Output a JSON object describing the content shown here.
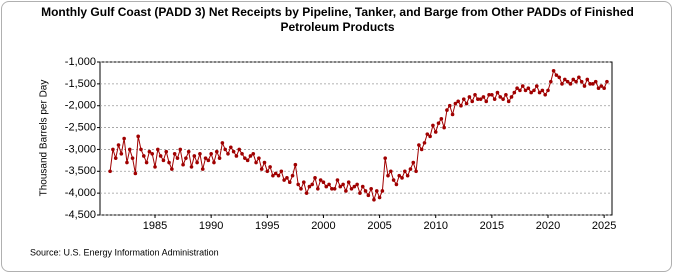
{
  "chart_data": {
    "type": "line",
    "title": "Monthly Gulf Coast (PADD 3) Net Receipts by Pipeline, Tanker, and Barge from Other PADDs of Finished Petroleum Products",
    "y_label": "Thousand Barrels per Day",
    "source": "Source: U.S. Energy Information Administration",
    "grid": true,
    "xlim": [
      1980.1,
      2025.7
    ],
    "xticks": [
      1985,
      1990,
      1995,
      2000,
      2005,
      2010,
      2015,
      2020,
      2025
    ],
    "ylim": [
      -4500,
      -1000
    ],
    "yticks": [
      {
        "value": -1000,
        "label": "-1,000"
      },
      {
        "value": -1500,
        "label": "-1,500"
      },
      {
        "value": -2000,
        "label": "-2,000"
      },
      {
        "value": -2500,
        "label": "-2,500"
      },
      {
        "value": -3000,
        "label": "-3,000"
      },
      {
        "value": -3500,
        "label": "-3,500"
      },
      {
        "value": -4000,
        "label": "-4,000"
      },
      {
        "value": -4500,
        "label": "-4,500"
      }
    ],
    "x": [
      1981,
      1981.25,
      1981.5,
      1981.75,
      1982,
      1982.25,
      1982.5,
      1982.75,
      1983,
      1983.25,
      1983.5,
      1983.75,
      1984,
      1984.25,
      1984.5,
      1984.75,
      1985,
      1985.25,
      1985.5,
      1985.75,
      1986,
      1986.25,
      1986.5,
      1986.75,
      1987,
      1987.25,
      1987.5,
      1987.75,
      1988,
      1988.25,
      1988.5,
      1988.75,
      1989,
      1989.25,
      1989.5,
      1989.75,
      1990,
      1990.25,
      1990.5,
      1990.75,
      1991,
      1991.25,
      1991.5,
      1991.75,
      1992,
      1992.25,
      1992.5,
      1992.75,
      1993,
      1993.25,
      1993.5,
      1993.75,
      1994,
      1994.25,
      1994.5,
      1994.75,
      1995,
      1995.25,
      1995.5,
      1995.75,
      1996,
      1996.25,
      1996.5,
      1996.75,
      1997,
      1997.25,
      1997.5,
      1997.75,
      1998,
      1998.25,
      1998.5,
      1998.75,
      1999,
      1999.25,
      1999.5,
      1999.75,
      2000,
      2000.25,
      2000.5,
      2000.75,
      2001,
      2001.25,
      2001.5,
      2001.75,
      2002,
      2002.25,
      2002.5,
      2002.75,
      2003,
      2003.25,
      2003.5,
      2003.75,
      2004,
      2004.25,
      2004.5,
      2004.75,
      2005,
      2005.25,
      2005.5,
      2005.75,
      2006,
      2006.25,
      2006.5,
      2006.75,
      2007,
      2007.25,
      2007.5,
      2007.75,
      2008,
      2008.25,
      2008.5,
      2008.75,
      2009,
      2009.25,
      2009.5,
      2009.75,
      2010,
      2010.25,
      2010.5,
      2010.75,
      2011,
      2011.25,
      2011.5,
      2011.75,
      2012,
      2012.25,
      2012.5,
      2012.75,
      2013,
      2013.25,
      2013.5,
      2013.75,
      2014,
      2014.25,
      2014.5,
      2014.75,
      2015,
      2015.25,
      2015.5,
      2015.75,
      2016,
      2016.25,
      2016.5,
      2016.75,
      2017,
      2017.25,
      2017.5,
      2017.75,
      2018,
      2018.25,
      2018.5,
      2018.75,
      2019,
      2019.25,
      2019.5,
      2019.75,
      2020,
      2020.25,
      2020.5,
      2020.75,
      2021,
      2021.25,
      2021.5,
      2021.75,
      2022,
      2022.25,
      2022.5,
      2022.75,
      2023,
      2023.25,
      2023.5,
      2023.75,
      2024,
      2024.25,
      2024.5,
      2024.75,
      2025,
      2025.25
    ],
    "series": [
      {
        "color": "#a00000",
        "values": [
          -3500,
          -3000,
          -3200,
          -2900,
          -3100,
          -2750,
          -3300,
          -3000,
          -3200,
          -3550,
          -2700,
          -3000,
          -3150,
          -3300,
          -3050,
          -3100,
          -3400,
          -3000,
          -3150,
          -3250,
          -3050,
          -3300,
          -3450,
          -3100,
          -3200,
          -3000,
          -3350,
          -3200,
          -3050,
          -3400,
          -3150,
          -3300,
          -3100,
          -3450,
          -3200,
          -3250,
          -3100,
          -3300,
          -3050,
          -3200,
          -2850,
          -3000,
          -3100,
          -2950,
          -3050,
          -3150,
          -3000,
          -3100,
          -3200,
          -3250,
          -3150,
          -3100,
          -3300,
          -3200,
          -3450,
          -3300,
          -3500,
          -3400,
          -3600,
          -3550,
          -3600,
          -3500,
          -3700,
          -3650,
          -3750,
          -3600,
          -3350,
          -3800,
          -3900,
          -3750,
          -4000,
          -3850,
          -3800,
          -3650,
          -3900,
          -3700,
          -3750,
          -3850,
          -3800,
          -3900,
          -3900,
          -3700,
          -3850,
          -3800,
          -3950,
          -3750,
          -3900,
          -3850,
          -3800,
          -4000,
          -3850,
          -3950,
          -4050,
          -3900,
          -4150,
          -3950,
          -4100,
          -3950,
          -3200,
          -3600,
          -3500,
          -3700,
          -3800,
          -3600,
          -3650,
          -3500,
          -3600,
          -3450,
          -3300,
          -3500,
          -2900,
          -3000,
          -2850,
          -2650,
          -2700,
          -2450,
          -2600,
          -2400,
          -2300,
          -2500,
          -2100,
          -2000,
          -2200,
          -1950,
          -1900,
          -2000,
          -1850,
          -1950,
          -1800,
          -1900,
          -1750,
          -1850,
          -1850,
          -1800,
          -1900,
          -1750,
          -1750,
          -1850,
          -1700,
          -1800,
          -1850,
          -1750,
          -1900,
          -1800,
          -1700,
          -1600,
          -1650,
          -1550,
          -1650,
          -1600,
          -1700,
          -1650,
          -1550,
          -1700,
          -1650,
          -1750,
          -1650,
          -1450,
          -1200,
          -1300,
          -1350,
          -1500,
          -1400,
          -1450,
          -1500,
          -1400,
          -1450,
          -1350,
          -1450,
          -1550,
          -1400,
          -1500,
          -1500,
          -1450,
          -1600,
          -1550,
          -1600,
          -1450
        ]
      }
    ]
  }
}
